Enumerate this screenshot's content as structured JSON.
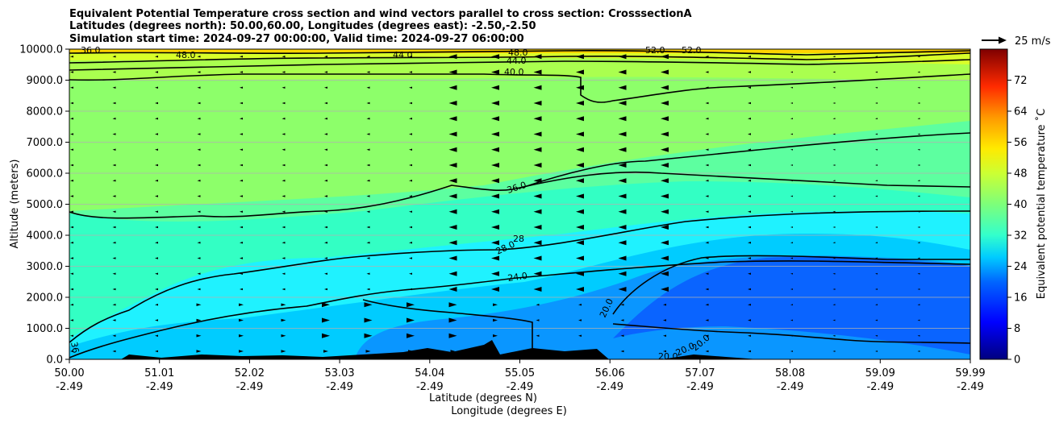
{
  "chart_data": {
    "type": "heatmap",
    "title_lines": [
      "Equivalent Potential Temperature cross section and wind vectors parallel to cross section: CrosssectionA",
      "Latitudes (degrees north): 50.00,60.00, Longitudes (degrees east): -2.50,-2.50",
      "Simulation start time: 2024-09-27 00:00:00, Valid time: 2024-09-27 06:00:00"
    ],
    "ylabel": "Altitude (meters)",
    "xlabel_line1": "Latitude (degrees N)",
    "xlabel_line2": "Longitude (degrees E)",
    "ylim": [
      0,
      10000
    ],
    "yticks": [
      "0.0",
      "1000.0",
      "2000.0",
      "3000.0",
      "4000.0",
      "5000.0",
      "6000.0",
      "7000.0",
      "8000.0",
      "9000.0",
      "10000.0"
    ],
    "xticks_lat": [
      "50.00",
      "51.01",
      "52.02",
      "53.03",
      "54.04",
      "55.05",
      "56.06",
      "57.07",
      "58.08",
      "59.09",
      "59.99"
    ],
    "xticks_lon": [
      "-2.49",
      "-2.49",
      "-2.49",
      "-2.49",
      "-2.49",
      "-2.49",
      "-2.49",
      "-2.49",
      "-2.49",
      "-2.49",
      "-2.49"
    ],
    "grid": "horizontal",
    "colorbar": {
      "label": "Equivalent potential temperature ˚C",
      "range": [
        0,
        80
      ],
      "ticks": [
        "0",
        "8",
        "16",
        "24",
        "32",
        "40",
        "48",
        "56",
        "64",
        "72"
      ]
    },
    "quiver_key": "25 m/s",
    "contour_labels": [
      "48.0",
      "44.0",
      "44.0",
      "40.0",
      "48.0",
      "52.0",
      "52.0",
      "36.0",
      "36.0",
      "28.0",
      "28",
      "24.0",
      "20.0",
      "20.0",
      "20.0",
      "20.0",
      "36"
    ]
  }
}
